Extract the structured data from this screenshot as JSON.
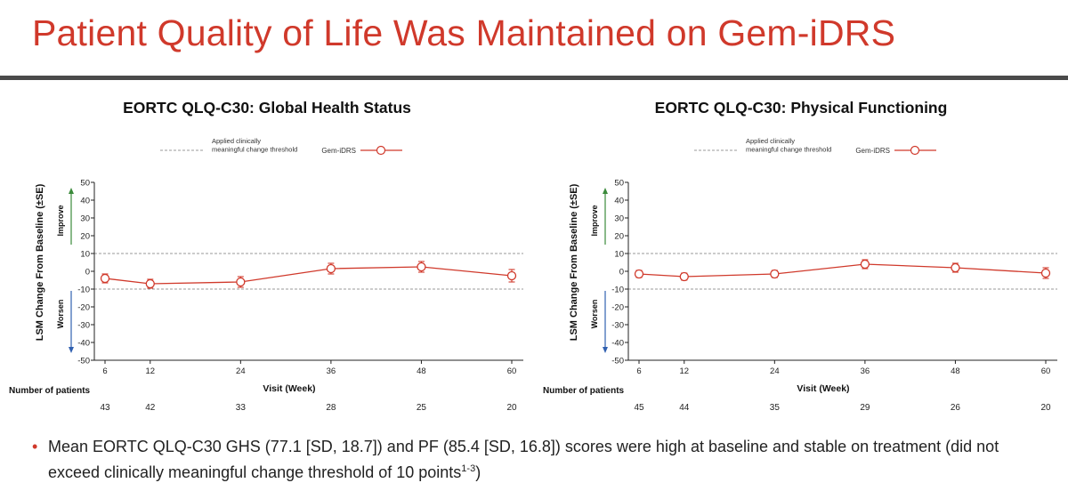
{
  "slide_title": "Patient Quality of Life Was Maintained on Gem-iDRS",
  "chart_data": [
    {
      "type": "line",
      "title": "EORTC QLQ-C30: Global Health Status",
      "xlabel": "Visit (Week)",
      "ylabel": "LSM Change From Baseline (±SE)",
      "x": [
        6,
        12,
        24,
        36,
        48,
        60
      ],
      "xticks": [
        "6",
        "12",
        "24",
        "36",
        "48",
        "60"
      ],
      "yticks": [
        50,
        40,
        30,
        20,
        10,
        0,
        -10,
        -20,
        -30,
        -40,
        -50
      ],
      "ylim": [
        -50,
        50
      ],
      "thresholds": [
        10,
        -10
      ],
      "threshold_label": "Applied clinically meaningful change threshold",
      "improve_label": "Improve",
      "worsen_label": "Worsen",
      "series": [
        {
          "name": "Gem-iDRS",
          "values": [
            -4,
            -7,
            -6,
            1.5,
            2.5,
            -2.5
          ],
          "se": [
            2.5,
            2.5,
            3,
            3,
            3,
            3.5
          ],
          "color": "#d0392b"
        }
      ],
      "patients_label": "Number of patients",
      "patients": [
        "43",
        "42",
        "33",
        "28",
        "25",
        "20"
      ]
    },
    {
      "type": "line",
      "title": "EORTC QLQ-C30: Physical Functioning",
      "xlabel": "Visit (Week)",
      "ylabel": "LSM Change From Baseline (±SE)",
      "x": [
        6,
        12,
        24,
        36,
        48,
        60
      ],
      "xticks": [
        "6",
        "12",
        "24",
        "36",
        "48",
        "60"
      ],
      "yticks": [
        50,
        40,
        30,
        20,
        10,
        0,
        -10,
        -20,
        -30,
        -40,
        -50
      ],
      "ylim": [
        -50,
        50
      ],
      "thresholds": [
        10,
        -10
      ],
      "threshold_label": "Applied clinically meaningful change threshold",
      "improve_label": "Improve",
      "worsen_label": "Worsen",
      "series": [
        {
          "name": "Gem-iDRS",
          "values": [
            -1.5,
            -3,
            -1.5,
            4,
            2,
            -1
          ],
          "se": [
            2,
            2,
            2,
            2.5,
            2.5,
            3
          ],
          "color": "#d0392b"
        }
      ],
      "patients_label": "Number of patients",
      "patients": [
        "45",
        "44",
        "35",
        "29",
        "26",
        "20"
      ]
    }
  ],
  "bullet": {
    "text": "Mean EORTC QLQ-C30 GHS (77.1 [SD, 18.7]) and PF (85.4 [SD, 16.8]) scores were high at baseline and stable on treatment (did not exceed clinically meaningful change threshold of 10 points",
    "superscript": "1-3",
    "closing": ")"
  },
  "colors": {
    "accent": "#d0392b",
    "rule": "#4a4a4a",
    "improve_arrow": "#3a8a3a",
    "worsen_arrow": "#3060b0"
  }
}
